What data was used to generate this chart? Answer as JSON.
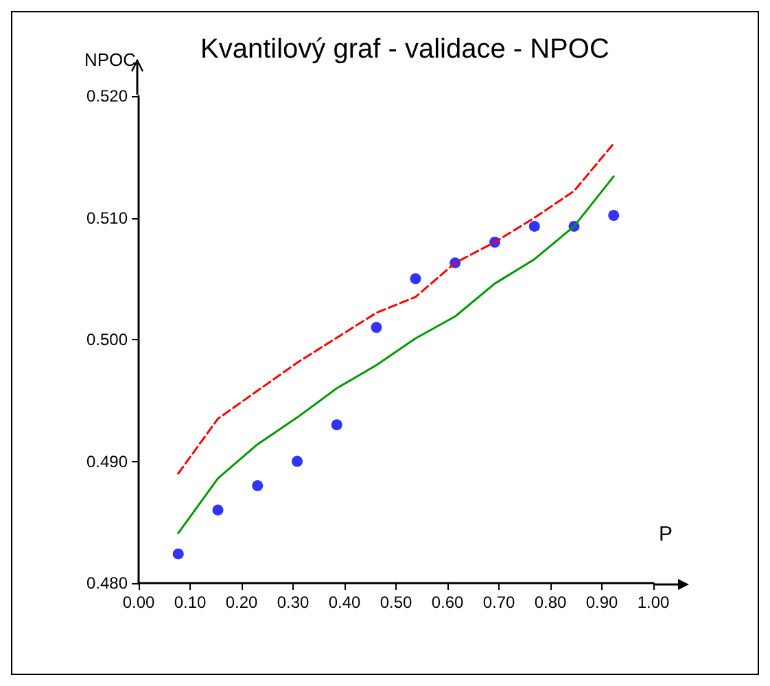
{
  "chart_data": {
    "type": "scatter",
    "title": "Kvantilový graf - validace - NPOC",
    "xlabel": "P",
    "ylabel": "NPOC",
    "xlim": [
      0,
      1
    ],
    "ylim": [
      0.48,
      0.52
    ],
    "xticks": [
      {
        "value": 0,
        "label": "0.00"
      },
      {
        "value": 0.1,
        "label": "0.10"
      },
      {
        "value": 0.2,
        "label": "0.20"
      },
      {
        "value": 0.3,
        "label": "0.30"
      },
      {
        "value": 0.4,
        "label": "0.40"
      },
      {
        "value": 0.5,
        "label": "0.50"
      },
      {
        "value": 0.6,
        "label": "0.60"
      },
      {
        "value": 0.7,
        "label": "0.70"
      },
      {
        "value": 0.8,
        "label": "0.80"
      },
      {
        "value": 0.9,
        "label": "0.90"
      },
      {
        "value": 1,
        "label": "1.00"
      }
    ],
    "yticks": [
      {
        "value": 0.48,
        "label": "0.480"
      },
      {
        "value": 0.49,
        "label": "0.490"
      },
      {
        "value": 0.5,
        "label": "0.500"
      },
      {
        "value": 0.51,
        "label": "0.510"
      },
      {
        "value": 0.52,
        "label": "0.520"
      }
    ],
    "grid": false,
    "series": [
      {
        "type": "line",
        "color": "#ff0000",
        "line_style": "dashed",
        "marker": "none",
        "x": [
          0.077,
          0.154,
          0.308,
          0.462,
          0.538,
          0.615,
          0.692,
          0.769,
          0.846,
          0.923
        ],
        "values": [
          0.489,
          0.4935,
          0.4981,
          0.5022,
          0.5035,
          0.5063,
          0.508,
          0.51,
          0.5122,
          0.5161
        ]
      },
      {
        "type": "line",
        "color": "#009900",
        "line_style": "solid",
        "marker": "none",
        "x": [
          0.077,
          0.154,
          0.231,
          0.308,
          0.385,
          0.462,
          0.538,
          0.615,
          0.692,
          0.769,
          0.846,
          0.923
        ],
        "values": [
          0.4841,
          0.4886,
          0.4914,
          0.4936,
          0.496,
          0.4979,
          0.5001,
          0.5019,
          0.5046,
          0.5066,
          0.5093,
          0.5134
        ]
      },
      {
        "color": "#0000ff",
        "marker": "circle",
        "x": [
          0.077,
          0.154,
          0.231,
          0.308,
          0.385,
          0.462,
          0.538,
          0.615,
          0.692,
          0.769,
          0.846,
          0.923
        ],
        "values": [
          0.4824,
          0.486,
          0.488,
          0.49,
          0.493,
          0.501,
          0.505,
          0.5063,
          0.508,
          0.5093,
          0.5093,
          0.5102
        ]
      }
    ]
  }
}
